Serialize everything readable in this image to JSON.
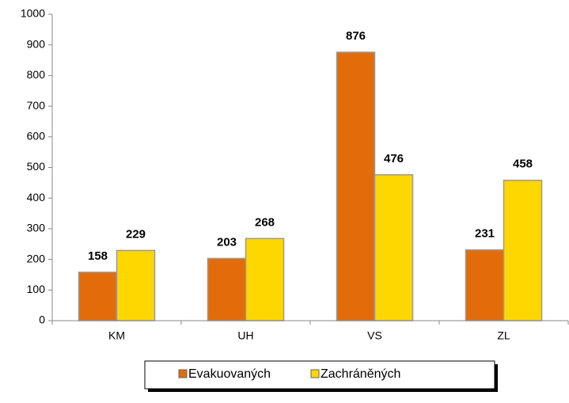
{
  "chart_data": {
    "type": "bar",
    "categories": [
      "KM",
      "UH",
      "VS",
      "ZL"
    ],
    "series": [
      {
        "name": "Evakuovaných",
        "color": "#e36c0a",
        "values": [
          158,
          203,
          876,
          231
        ]
      },
      {
        "name": "Zachráněných",
        "color": "#ffd700",
        "values": [
          229,
          268,
          476,
          458
        ]
      }
    ],
    "ylim": [
      0,
      1000
    ],
    "yticks": [
      0,
      100,
      200,
      300,
      400,
      500,
      600,
      700,
      800,
      900,
      1000
    ],
    "legend": "bottom",
    "data_labels": true
  }
}
